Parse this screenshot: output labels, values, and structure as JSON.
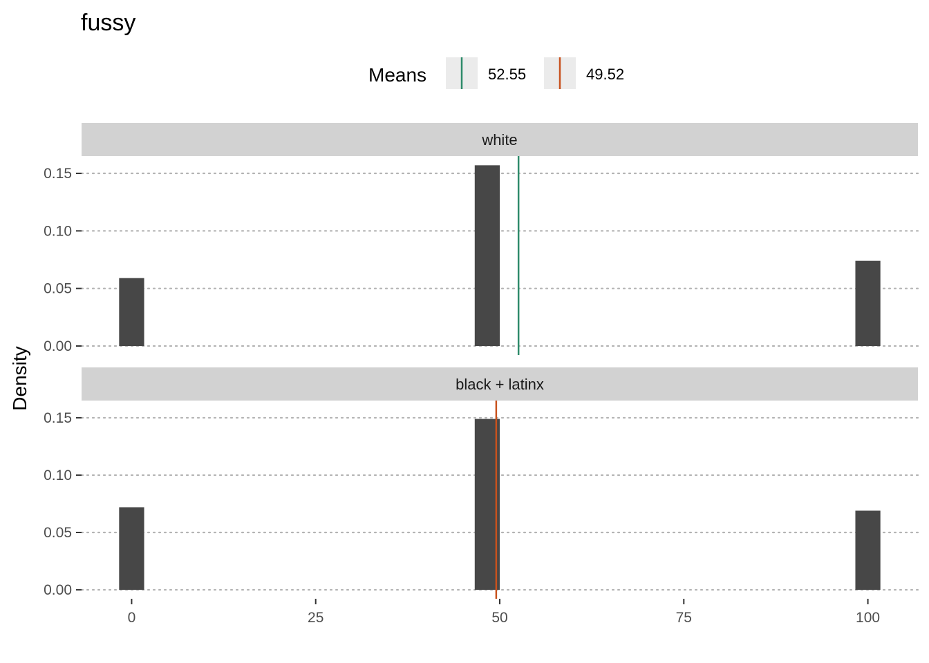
{
  "chart_data": {
    "type": "bar",
    "title": "fussy",
    "xlabel": "",
    "ylabel": "Density",
    "xlim": [
      -6.8,
      106.8
    ],
    "ylim": [
      -0.0078,
      0.165
    ],
    "x_ticks": [
      0,
      25,
      50,
      75,
      100
    ],
    "y_ticks": [
      0.0,
      0.05,
      0.1,
      0.15
    ],
    "y_tick_labels": [
      "0.00",
      "0.05",
      "0.10",
      "0.15"
    ],
    "grid": "horizontal-dotted",
    "bar_color": "#474747",
    "bar_width": 3.4,
    "legend": {
      "title": "Means",
      "placement": "top",
      "entries": [
        {
          "label": "52.55",
          "color": "#2e8b6a"
        },
        {
          "label": "49.52",
          "color": "#c8521e"
        }
      ]
    },
    "panels": [
      {
        "strip": "white",
        "bars": [
          {
            "x": 0,
            "y": 0.059
          },
          {
            "x": 48.3,
            "y": 0.157
          },
          {
            "x": 100,
            "y": 0.074
          }
        ],
        "mean": 52.55,
        "mean_color": "#2e8b6a"
      },
      {
        "strip": "black + latinx",
        "bars": [
          {
            "x": 0,
            "y": 0.072
          },
          {
            "x": 48.3,
            "y": 0.149
          },
          {
            "x": 100,
            "y": 0.069
          }
        ],
        "mean": 49.52,
        "mean_color": "#c8521e"
      }
    ]
  }
}
